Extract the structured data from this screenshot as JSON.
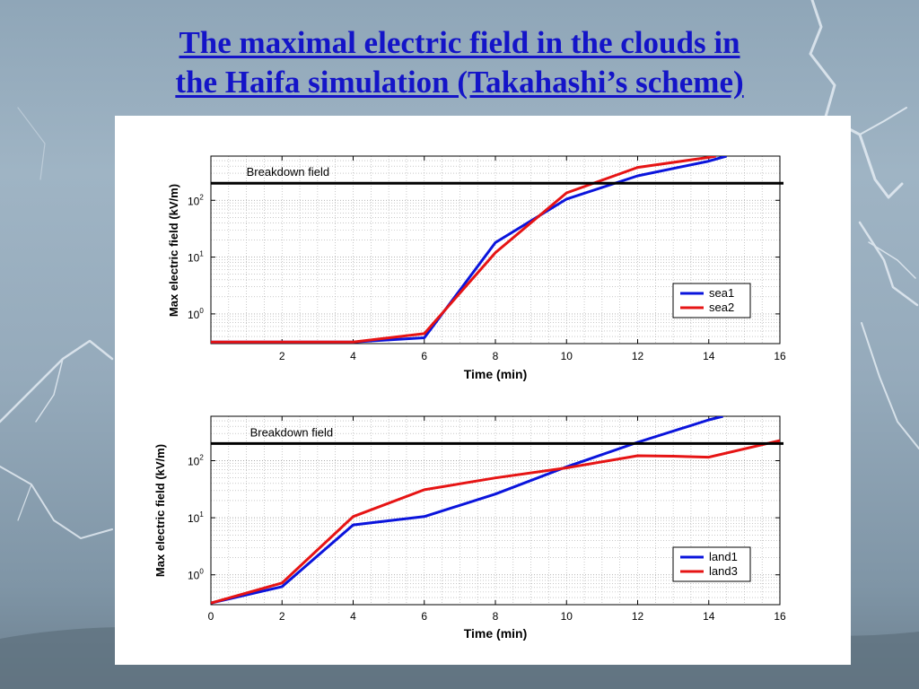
{
  "slide": {
    "title_line1": "The maximal electric field in the clouds in",
    "title_line2": "the Haifa simulation (Takahashi’s scheme)"
  },
  "colors": {
    "title": "#1414c8",
    "series1": "#0a14dc",
    "series2": "#e61414",
    "breakdown": "#000000"
  },
  "chart_data": [
    {
      "type": "line",
      "xlabel": "Time (min)",
      "ylabel": "Max electric field (kV/m)",
      "xlim": [
        0,
        16
      ],
      "ylim": [
        0.3,
        600
      ],
      "yscale": "log",
      "grid": true,
      "xticks": [
        2,
        4,
        6,
        8,
        10,
        12,
        14,
        16
      ],
      "yticks": [
        {
          "base": "10",
          "exp": "0",
          "value": 1
        },
        {
          "base": "10",
          "exp": "1",
          "value": 10
        },
        {
          "base": "10",
          "exp": "2",
          "value": 100
        }
      ],
      "hline": {
        "y": 200,
        "label": "Breakdown field"
      },
      "legend": "lower-right",
      "series": [
        {
          "name": "sea1",
          "x": [
            0,
            4,
            6,
            8,
            10,
            12,
            14,
            14.5
          ],
          "y": [
            0.32,
            0.32,
            0.38,
            18,
            105,
            270,
            490,
            600
          ]
        },
        {
          "name": "sea2",
          "x": [
            0,
            4,
            6,
            8,
            10,
            12,
            14,
            14.2
          ],
          "y": [
            0.32,
            0.32,
            0.45,
            12,
            135,
            380,
            570,
            600
          ]
        }
      ]
    },
    {
      "type": "line",
      "xlabel": "Time (min)",
      "ylabel": "Max electric field (kV/m)",
      "xlim": [
        0,
        16
      ],
      "ylim": [
        0.3,
        600
      ],
      "yscale": "log",
      "grid": true,
      "xticks": [
        0,
        2,
        4,
        6,
        8,
        10,
        12,
        14,
        16
      ],
      "yticks": [
        {
          "base": "10",
          "exp": "0",
          "value": 1
        },
        {
          "base": "10",
          "exp": "1",
          "value": 10
        },
        {
          "base": "10",
          "exp": "2",
          "value": 100
        }
      ],
      "hline": {
        "y": 200,
        "label": "Breakdown field"
      },
      "legend": "lower-right",
      "series": [
        {
          "name": "land1",
          "x": [
            0,
            2,
            4,
            6,
            8,
            10,
            12,
            14,
            14.4
          ],
          "y": [
            0.32,
            0.62,
            7.5,
            10.5,
            26,
            78,
            210,
            520,
            600
          ]
        },
        {
          "name": "land3",
          "x": [
            0,
            2,
            4,
            6,
            8,
            10,
            12,
            13,
            14,
            16
          ],
          "y": [
            0.32,
            0.72,
            10.5,
            31,
            50,
            75,
            122,
            120,
            115,
            225
          ]
        }
      ]
    }
  ]
}
